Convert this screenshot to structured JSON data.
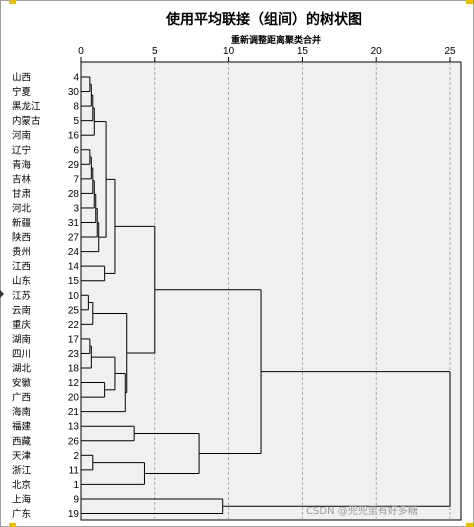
{
  "chart_data": {
    "type": "dendrogram",
    "title": "使用平均联接（组间）的树状图",
    "subtitle": "重新调整距离聚类合并",
    "x_ticks": [
      0,
      5,
      10,
      15,
      20,
      25
    ],
    "xlim": [
      0,
      25
    ],
    "leaves": [
      {
        "name": "山西",
        "id": "4"
      },
      {
        "name": "宁夏",
        "id": "30"
      },
      {
        "name": "黑龙江",
        "id": "8"
      },
      {
        "name": "内蒙古",
        "id": "5"
      },
      {
        "name": "河南",
        "id": "16"
      },
      {
        "name": "辽宁",
        "id": "6"
      },
      {
        "name": "青海",
        "id": "29"
      },
      {
        "name": "吉林",
        "id": "7"
      },
      {
        "name": "甘肃",
        "id": "28"
      },
      {
        "name": "河北",
        "id": "3"
      },
      {
        "name": "新疆",
        "id": "31"
      },
      {
        "name": "陕西",
        "id": "27"
      },
      {
        "name": "贵州",
        "id": "24"
      },
      {
        "name": "江西",
        "id": "14"
      },
      {
        "name": "山东",
        "id": "15"
      },
      {
        "name": "江苏",
        "id": "10"
      },
      {
        "name": "云南",
        "id": "25"
      },
      {
        "name": "重庆",
        "id": "22"
      },
      {
        "name": "湖南",
        "id": "17"
      },
      {
        "name": "四川",
        "id": "23"
      },
      {
        "name": "湖北",
        "id": "18"
      },
      {
        "name": "安徽",
        "id": "12"
      },
      {
        "name": "广西",
        "id": "20"
      },
      {
        "name": "海南",
        "id": "21"
      },
      {
        "name": "福建",
        "id": "13"
      },
      {
        "name": "西藏",
        "id": "26"
      },
      {
        "name": "天津",
        "id": "2"
      },
      {
        "name": "浙江",
        "id": "11"
      },
      {
        "name": "北京",
        "id": "1"
      },
      {
        "name": "上海",
        "id": "9"
      },
      {
        "name": "广东",
        "id": "19"
      }
    ],
    "merges": [
      {
        "a": 0,
        "b": 1,
        "d": 0.6
      },
      {
        "a": 0,
        "b": 2,
        "d": 0.7
      },
      {
        "a": 0,
        "b": 3,
        "d": 0.8
      },
      {
        "a": 0,
        "b": 4,
        "d": 0.9
      },
      {
        "a": 5,
        "b": 6,
        "d": 0.6
      },
      {
        "a": 5,
        "b": 7,
        "d": 0.7
      },
      {
        "a": 5,
        "b": 8,
        "d": 0.8
      },
      {
        "a": 5,
        "b": 9,
        "d": 0.9
      },
      {
        "a": 5,
        "b": 10,
        "d": 1.0
      },
      {
        "a": 5,
        "b": 11,
        "d": 1.1
      },
      {
        "a": 5,
        "b": 12,
        "d": 1.2
      },
      {
        "a": 0,
        "b": 5,
        "d": 1.7
      },
      {
        "a": 13,
        "b": 14,
        "d": 1.6
      },
      {
        "a": 0,
        "b": 13,
        "d": 2.3
      },
      {
        "a": 15,
        "b": 16,
        "d": 0.5
      },
      {
        "a": 15,
        "b": 17,
        "d": 0.8
      },
      {
        "a": 18,
        "b": 19,
        "d": 0.6
      },
      {
        "a": 18,
        "b": 20,
        "d": 0.7
      },
      {
        "a": 21,
        "b": 22,
        "d": 1.6
      },
      {
        "a": 18,
        "b": 21,
        "d": 2.3
      },
      {
        "a": 18,
        "b": 23,
        "d": 3.0
      },
      {
        "a": 15,
        "b": 18,
        "d": 3.1
      },
      {
        "a": 0,
        "b": 15,
        "d": 5.0
      },
      {
        "a": 24,
        "b": 25,
        "d": 3.6
      },
      {
        "a": 26,
        "b": 27,
        "d": 0.8
      },
      {
        "a": 26,
        "b": 28,
        "d": 4.3
      },
      {
        "a": 24,
        "b": 26,
        "d": 8.0
      },
      {
        "a": 0,
        "b": 24,
        "d": 12.2
      },
      {
        "a": 29,
        "b": 30,
        "d": 9.6
      },
      {
        "a": 0,
        "b": 29,
        "d": 25.0
      }
    ]
  },
  "watermark": "CSDN @兜兜里有好多糖"
}
